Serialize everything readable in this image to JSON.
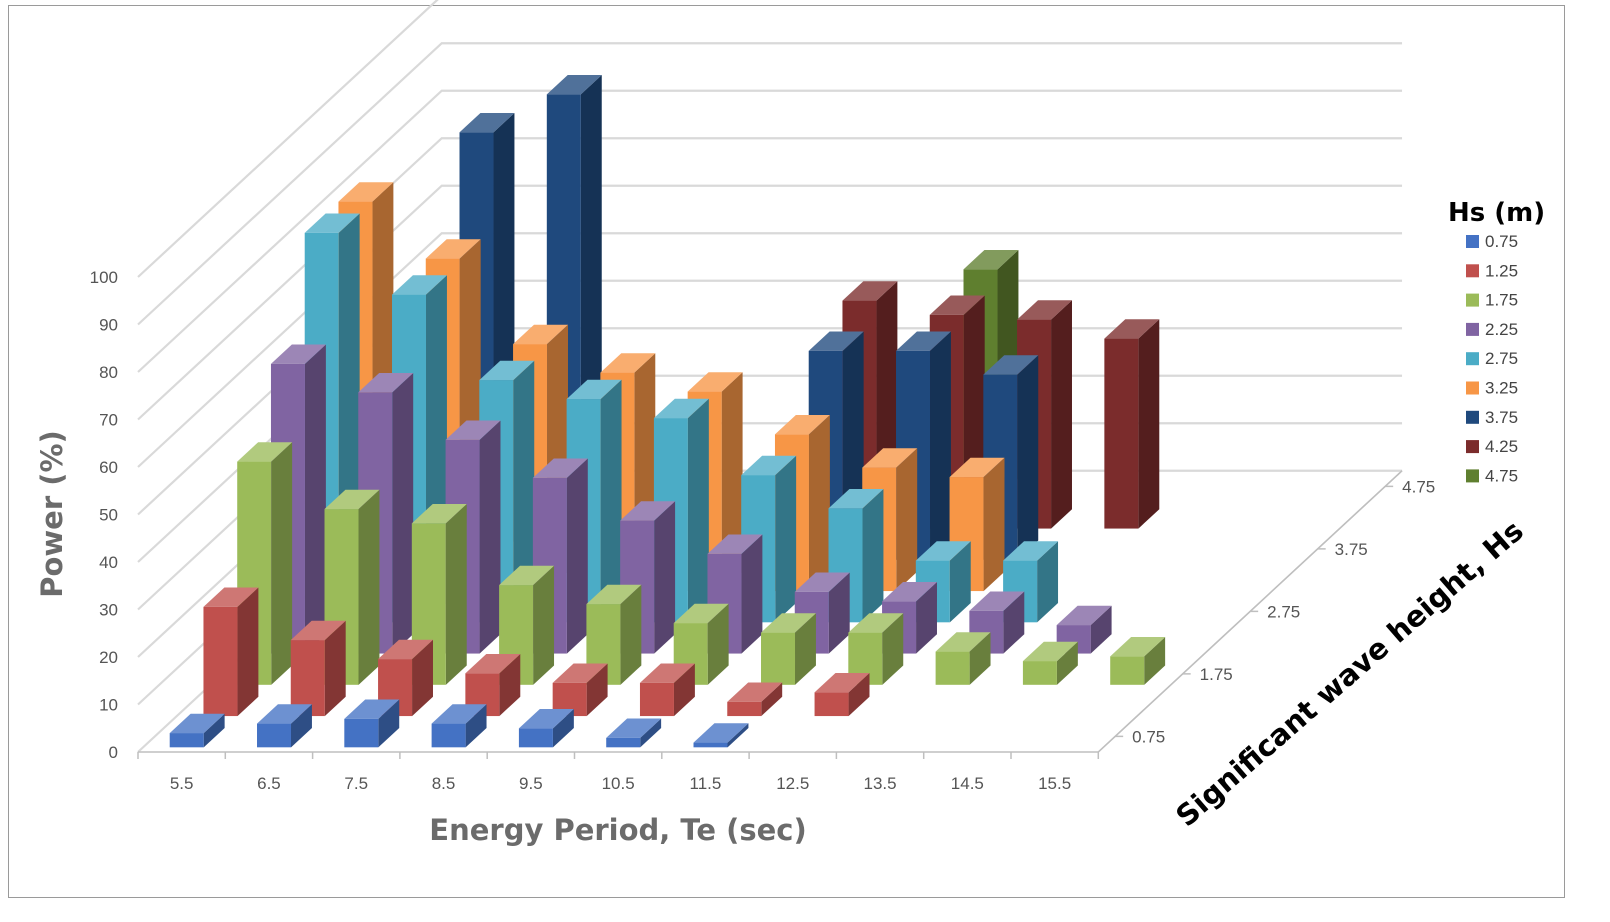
{
  "chart_data": {
    "type": "bar",
    "subtype": "3d-column",
    "title": "",
    "xlabel": "Energy Period, Te (sec)",
    "ylabel": "Power (%)",
    "zlabel": "Significant wave height, Hs",
    "ylim": [
      0,
      100
    ],
    "yticks": [
      0,
      10,
      20,
      30,
      40,
      50,
      60,
      70,
      80,
      90,
      100
    ],
    "categories": [
      "5.5",
      "6.5",
      "7.5",
      "8.5",
      "9.5",
      "10.5",
      "11.5",
      "12.5",
      "13.5",
      "14.5",
      "15.5"
    ],
    "depth_ticks": [
      "0.75",
      "1.75",
      "2.75",
      "3.75",
      "4.75"
    ],
    "legend": {
      "title": "Hs (m)",
      "position": "right"
    },
    "grid": true,
    "series": [
      {
        "name": "0.75",
        "color": "#4472C4",
        "values": [
          3,
          5,
          6,
          5,
          4,
          2,
          1,
          null,
          null,
          null,
          null
        ]
      },
      {
        "name": "1.25",
        "color": "#C0504D",
        "values": [
          23,
          16,
          12,
          9,
          7,
          7,
          3,
          5,
          null,
          null,
          null
        ]
      },
      {
        "name": "1.75",
        "color": "#9BBB59",
        "values": [
          47,
          37,
          34,
          21,
          17,
          13,
          11,
          11,
          7,
          5,
          6
        ]
      },
      {
        "name": "2.25",
        "color": "#8064A2",
        "values": [
          61,
          55,
          45,
          37,
          28,
          21,
          13,
          11,
          9,
          6,
          null
        ]
      },
      {
        "name": "2.75",
        "color": "#4BACC6",
        "values": [
          82,
          69,
          51,
          47,
          43,
          31,
          24,
          13,
          13,
          null,
          null
        ]
      },
      {
        "name": "3.25",
        "color": "#F79646",
        "values": [
          82,
          70,
          52,
          46,
          42,
          33,
          26,
          24,
          null,
          null,
          null
        ]
      },
      {
        "name": "3.75",
        "color": "#1F497D",
        "values": [
          null,
          90,
          98,
          null,
          null,
          44,
          44,
          39,
          null,
          null,
          null
        ]
      },
      {
        "name": "4.25",
        "color": "#7B2C2C",
        "values": [
          null,
          null,
          null,
          null,
          null,
          48,
          45,
          44,
          40,
          null,
          null
        ]
      },
      {
        "name": "4.75",
        "color": "#5F7F2F",
        "values": [
          null,
          null,
          null,
          null,
          null,
          null,
          48,
          null,
          null,
          null,
          null
        ]
      }
    ]
  }
}
